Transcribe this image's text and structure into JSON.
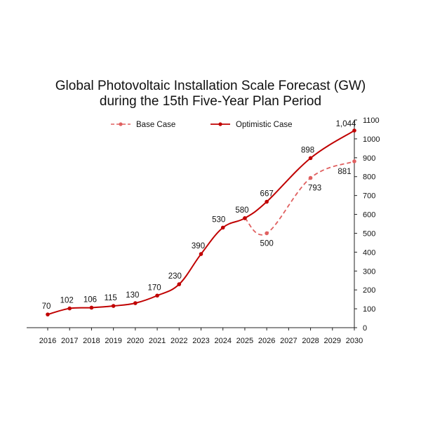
{
  "chart_data": {
    "type": "line",
    "title_lines": [
      "Global Photovoltaic Installation Scale Forecast (GW)",
      "during the 15th Five-Year Plan Period"
    ],
    "x": [
      "2016",
      "2017",
      "2018",
      "2019",
      "2020",
      "2021",
      "2022",
      "2023",
      "2024",
      "2025",
      "2026",
      "2027",
      "2028",
      "2029",
      "2030"
    ],
    "y_ticks": [
      "0",
      "100",
      "200",
      "300",
      "400",
      "500",
      "600",
      "700",
      "800",
      "900",
      "1000",
      "1100"
    ],
    "ylim": [
      0,
      1100
    ],
    "y_axis_position": "right",
    "grid": false,
    "legend_position": "top",
    "series": [
      {
        "name": "Base Case",
        "style": "dashed",
        "color": "#e06060",
        "points": [
          {
            "x": "2025",
            "y": 580,
            "label": ""
          },
          {
            "x": "2026",
            "y": 500,
            "label": "500"
          },
          {
            "x": "2028",
            "y": 793,
            "label": "793"
          },
          {
            "x": "2030",
            "y": 881,
            "label": "881"
          }
        ]
      },
      {
        "name": "Optimistic Case",
        "style": "solid",
        "color": "#c00000",
        "points": [
          {
            "x": "2016",
            "y": 70,
            "label": "70"
          },
          {
            "x": "2017",
            "y": 102,
            "label": "102"
          },
          {
            "x": "2018",
            "y": 106,
            "label": "106"
          },
          {
            "x": "2019",
            "y": 115,
            "label": "115"
          },
          {
            "x": "2020",
            "y": 130,
            "label": "130"
          },
          {
            "x": "2021",
            "y": 170,
            "label": "170"
          },
          {
            "x": "2022",
            "y": 230,
            "label": "230"
          },
          {
            "x": "2023",
            "y": 390,
            "label": "390"
          },
          {
            "x": "2024",
            "y": 530,
            "label": "530"
          },
          {
            "x": "2025",
            "y": 580,
            "label": "580"
          },
          {
            "x": "2026",
            "y": 667,
            "label": "667"
          },
          {
            "x": "2028",
            "y": 898,
            "label": "898"
          },
          {
            "x": "2030",
            "y": 1044,
            "label": "1,044"
          }
        ]
      }
    ]
  }
}
